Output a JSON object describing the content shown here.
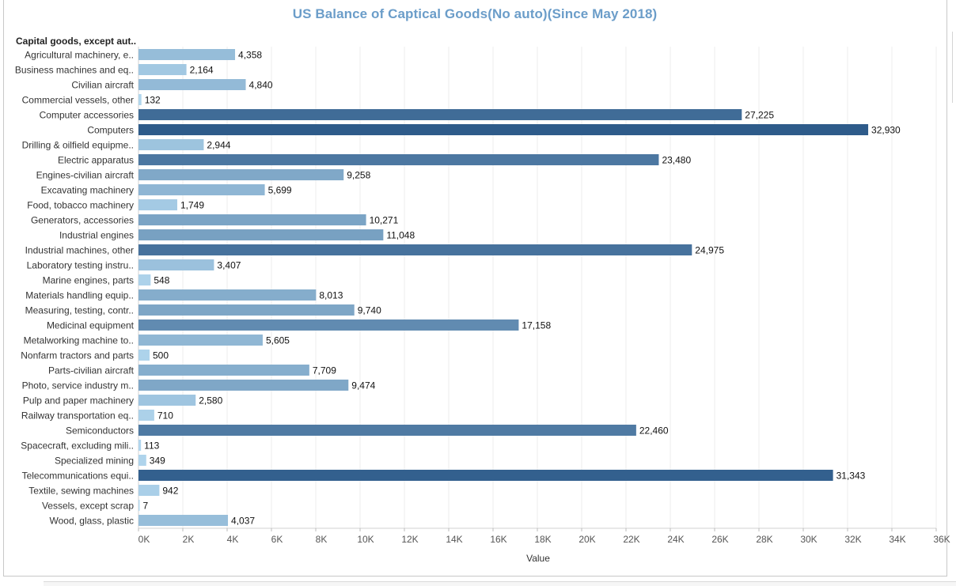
{
  "chart_data": {
    "type": "bar",
    "orientation": "horizontal",
    "title": "US Balance of Captical Goods(No auto)(Since May 2018)",
    "category_header": "Capital goods, except aut..",
    "xlabel": "Value",
    "xlim": [
      0,
      36000
    ],
    "x_ticks": [
      "0K",
      "2K",
      "4K",
      "6K",
      "8K",
      "10K",
      "12K",
      "14K",
      "16K",
      "18K",
      "20K",
      "22K",
      "24K",
      "26K",
      "28K",
      "30K",
      "32K",
      "34K",
      "36K"
    ],
    "grid": true,
    "color_encoding": "sequential blue by value",
    "colors": {
      "low": "#b3d8ef",
      "high": "#2e5b8a",
      "title": "#6b9dc9"
    },
    "categories": [
      "Agricultural machinery, e..",
      "Business machines and eq..",
      "Civilian aircraft",
      "Commercial vessels, other",
      "Computer accessories",
      "Computers",
      "Drilling & oilfield equipme..",
      "Electric apparatus",
      "Engines-civilian aircraft",
      "Excavating machinery",
      "Food, tobacco machinery",
      "Generators, accessories",
      "Industrial engines",
      "Industrial machines, other",
      "Laboratory testing instru..",
      "Marine engines, parts",
      "Materials handling equip..",
      "Measuring, testing, contr..",
      "Medicinal equipment",
      "Metalworking machine to..",
      "Nonfarm tractors and parts",
      "Parts-civilian aircraft",
      "Photo, service industry m..",
      "Pulp and paper machinery",
      "Railway transportation eq..",
      "Semiconductors",
      "Spacecraft, excluding mili..",
      "Specialized mining",
      "Telecommunications equi..",
      "Textile, sewing machines",
      "Vessels, except scrap",
      "Wood, glass, plastic"
    ],
    "values": [
      4358,
      2164,
      4840,
      132,
      27225,
      32930,
      2944,
      23480,
      9258,
      5699,
      1749,
      10271,
      11048,
      24975,
      3407,
      548,
      8013,
      9740,
      17158,
      5605,
      500,
      7709,
      9474,
      2580,
      710,
      22460,
      113,
      349,
      31343,
      942,
      7,
      4037
    ],
    "value_labels": [
      "4,358",
      "2,164",
      "4,840",
      "132",
      "27,225",
      "32,930",
      "2,944",
      "23,480",
      "9,258",
      "5,699",
      "1,749",
      "10,271",
      "11,048",
      "24,975",
      "3,407",
      "548",
      "8,013",
      "9,740",
      "17,158",
      "5,605",
      "500",
      "7,709",
      "9,474",
      "2,580",
      "710",
      "22,460",
      "113",
      "349",
      "31,343",
      "942",
      "7",
      "4,037"
    ]
  }
}
